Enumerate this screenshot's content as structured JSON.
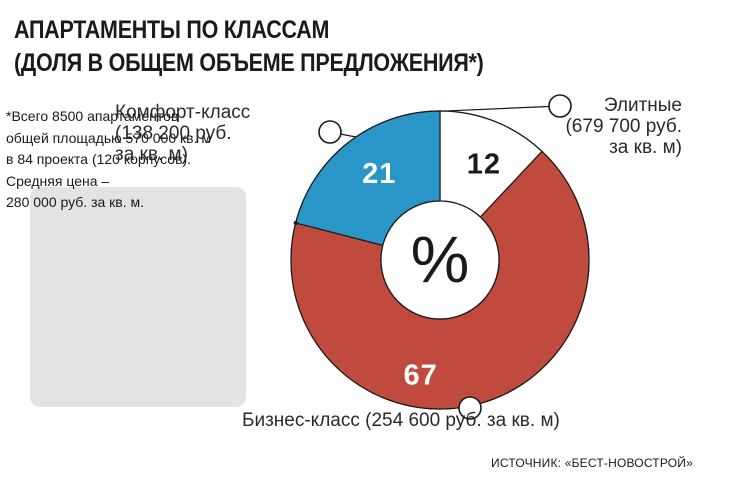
{
  "title": {
    "line1": "АПАРТАМЕНТЫ ПО КЛАССАМ",
    "line2": "(ДОЛЯ В ОБЩЕМ ОБЪЕМЕ ПРЕДЛОЖЕНИЯ*)"
  },
  "note": {
    "lines": [
      "*Всего 8500 апартаментов",
      "общей площадью 570 000 кв. м",
      "в 84 проекта (120 корпусов).",
      "Средняя цена –",
      "280 000 руб. за кв. м."
    ]
  },
  "source": "ИСТОЧНИК: «БЕСТ-НОВОСТРОЙ»",
  "labels": {
    "comfort": [
      "Комфорт-класс",
      "(138 200 руб.",
      "за кв. м)"
    ],
    "elite": [
      "Элитные",
      "(679 700 руб.",
      "за кв. м)"
    ],
    "business": [
      "Бизнес-класс (254  600 руб. за кв. м)"
    ]
  },
  "chart_data": {
    "type": "pie",
    "center_label": "%",
    "slices": [
      {
        "name": "Элитные",
        "value": 12,
        "label": "12",
        "color": "#ffffff",
        "label_color": "#1a1a1a"
      },
      {
        "name": "Бизнес-класс",
        "value": 67,
        "label": "67",
        "color": "#c04a3e",
        "label_color": "#ffffff"
      },
      {
        "name": "Комфорт-класс",
        "value": 21,
        "label": "21",
        "color": "#2a96c8",
        "label_color": "#ffffff"
      }
    ]
  }
}
